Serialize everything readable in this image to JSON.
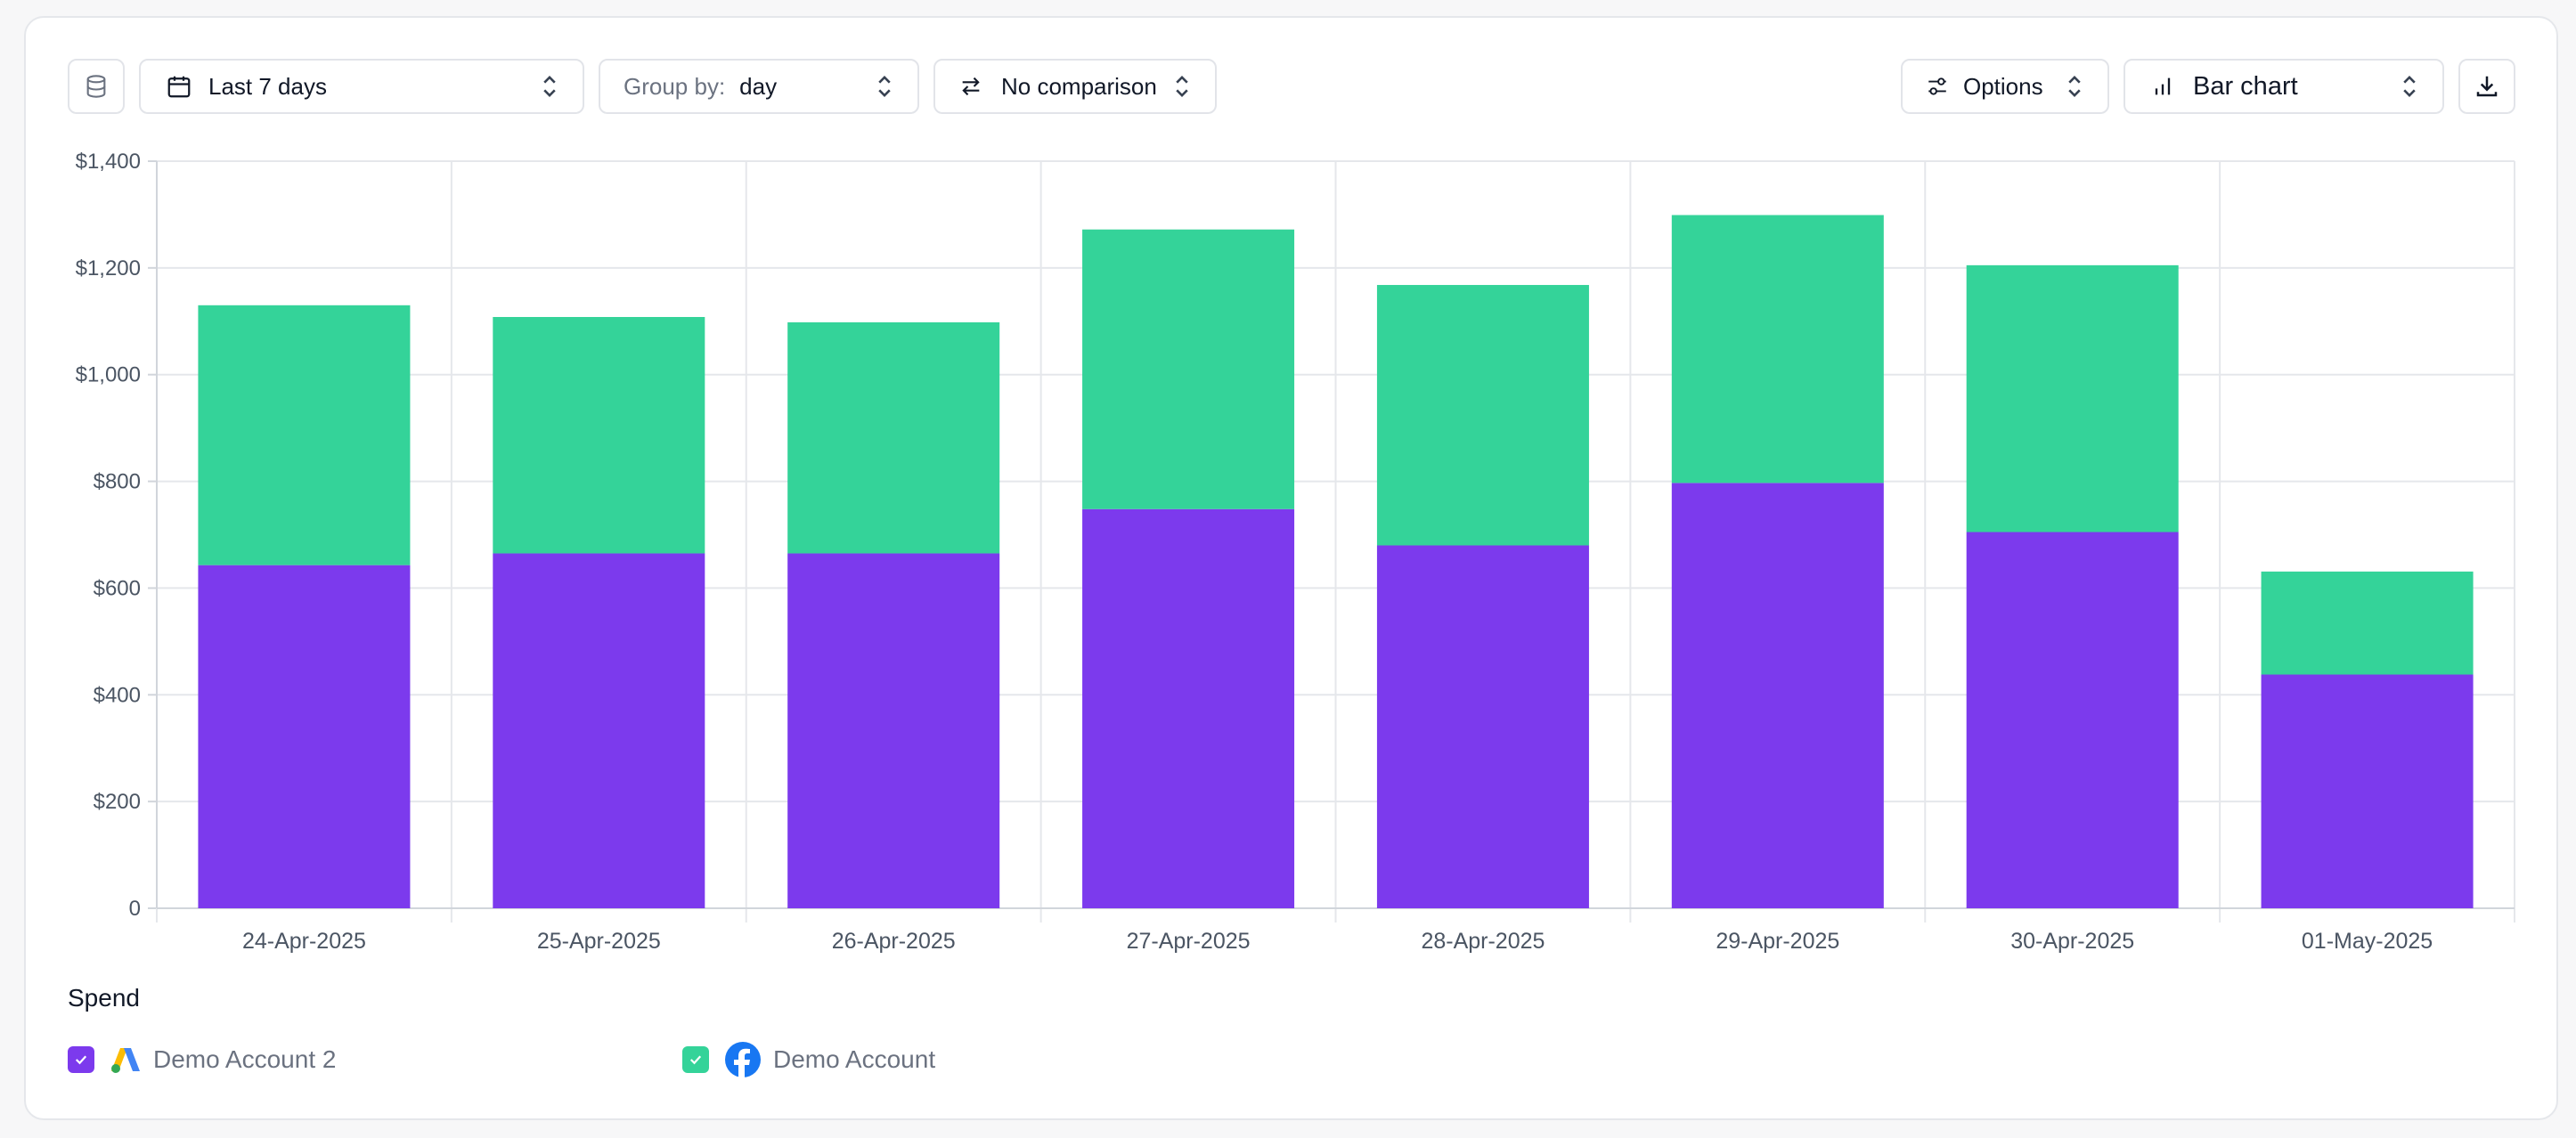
{
  "toolbar": {
    "date_range": "Last 7 days",
    "group_by_label": "Group by:",
    "group_by_value": "day",
    "comparison": "No comparison",
    "options": "Options",
    "chart_type": "Bar chart"
  },
  "icons": {
    "database": "database-icon",
    "calendar": "calendar-icon",
    "swap": "swap-arrows-icon",
    "sliders": "sliders-icon",
    "bar_chart": "bar-chart-icon",
    "download": "download-icon",
    "chevron": "chevron-up-down-icon",
    "google_ads": "google-ads-icon",
    "facebook": "facebook-icon"
  },
  "legend": {
    "title": "Spend",
    "items": [
      {
        "label": "Demo Account 2",
        "color": "#7c3aed",
        "icon": "google-ads-icon"
      },
      {
        "label": "Demo Account",
        "color": "#34d399",
        "icon": "facebook-icon"
      }
    ]
  },
  "chart_data": {
    "type": "bar",
    "stacked": true,
    "categories": [
      "24-Apr-2025",
      "25-Apr-2025",
      "26-Apr-2025",
      "27-Apr-2025",
      "28-Apr-2025",
      "29-Apr-2025",
      "30-Apr-2025",
      "01-May-2025"
    ],
    "series": [
      {
        "name": "Demo Account 2",
        "color": "#7c3aed",
        "values": [
          643,
          665,
          665,
          748,
          680,
          797,
          705,
          438
        ]
      },
      {
        "name": "Demo Account",
        "color": "#34d399",
        "values": [
          487,
          443,
          433,
          524,
          488,
          502,
          500,
          193
        ]
      }
    ],
    "ylim": [
      0,
      1400
    ],
    "yticks": [
      0,
      200,
      400,
      600,
      800,
      1000,
      1200,
      1400
    ],
    "ytick_labels": [
      "0",
      "$200",
      "$400",
      "$600",
      "$800",
      "$1,000",
      "$1,200",
      "$1,400"
    ],
    "grid": true,
    "legend_position": "bottom-left"
  }
}
